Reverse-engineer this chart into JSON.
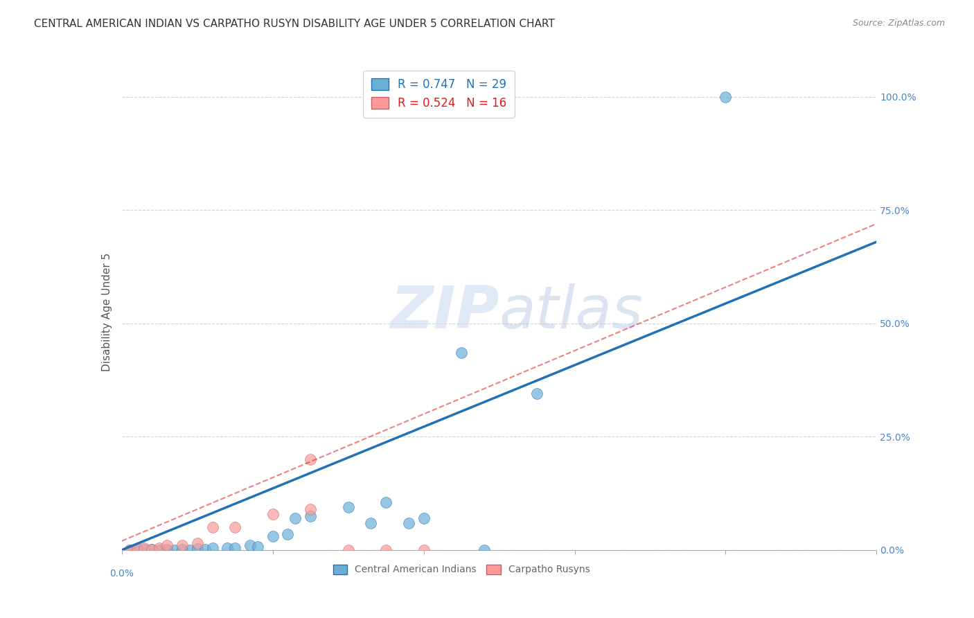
{
  "title": "CENTRAL AMERICAN INDIAN VS CARPATHO RUSYN DISABILITY AGE UNDER 5 CORRELATION CHART",
  "source": "Source: ZipAtlas.com",
  "ylabel": "Disability Age Under 5",
  "legend_line1": "R = 0.747   N = 29",
  "legend_line2": "R = 0.524   N = 16",
  "blue_scatter_x": [
    0.001,
    0.002,
    0.003,
    0.004,
    0.005,
    0.006,
    0.007,
    0.008,
    0.009,
    0.01,
    0.011,
    0.012,
    0.014,
    0.015,
    0.017,
    0.018,
    0.02,
    0.022,
    0.023,
    0.025,
    0.03,
    0.033,
    0.035,
    0.038,
    0.04,
    0.045,
    0.048,
    0.055,
    0.08
  ],
  "blue_scatter_y": [
    0.0,
    0.0,
    0.002,
    0.001,
    0.0,
    0.001,
    0.0,
    0.002,
    0.0,
    0.003,
    0.002,
    0.004,
    0.005,
    0.005,
    0.01,
    0.008,
    0.03,
    0.035,
    0.07,
    0.075,
    0.095,
    0.06,
    0.105,
    0.06,
    0.07,
    0.435,
    0.0,
    0.345,
    1.0
  ],
  "pink_scatter_x": [
    0.001,
    0.002,
    0.003,
    0.004,
    0.005,
    0.006,
    0.008,
    0.01,
    0.012,
    0.015,
    0.02,
    0.025,
    0.025,
    0.03,
    0.035,
    0.04
  ],
  "pink_scatter_y": [
    0.0,
    0.003,
    0.005,
    0.001,
    0.005,
    0.01,
    0.01,
    0.015,
    0.05,
    0.05,
    0.08,
    0.09,
    0.2,
    0.0,
    0.0,
    0.0
  ],
  "blue_line_x": [
    0.0,
    0.1
  ],
  "blue_line_y": [
    0.0,
    0.68
  ],
  "pink_line_x": [
    0.0,
    0.1
  ],
  "pink_line_y": [
    0.02,
    0.72
  ],
  "blue_color": "#6baed6",
  "blue_line_color": "#2171b5",
  "pink_color": "#fb9a99",
  "pink_line_color": "#e31a1c",
  "grid_color": "#d3d3d3",
  "title_color": "#333333",
  "axis_label_color": "#4a86c8",
  "watermark_zip": "ZIP",
  "watermark_atlas": "atlas",
  "xlim": [
    0.0,
    0.1
  ],
  "ylim": [
    0.0,
    1.05
  ],
  "yticks": [
    0.0,
    0.25,
    0.5,
    0.75,
    1.0
  ],
  "ytick_labels": [
    "0.0%",
    "25.0%",
    "50.0%",
    "75.0%",
    "100.0%"
  ],
  "legend_blue_label": "Central American Indians",
  "legend_pink_label": "Carpatho Rusyns"
}
